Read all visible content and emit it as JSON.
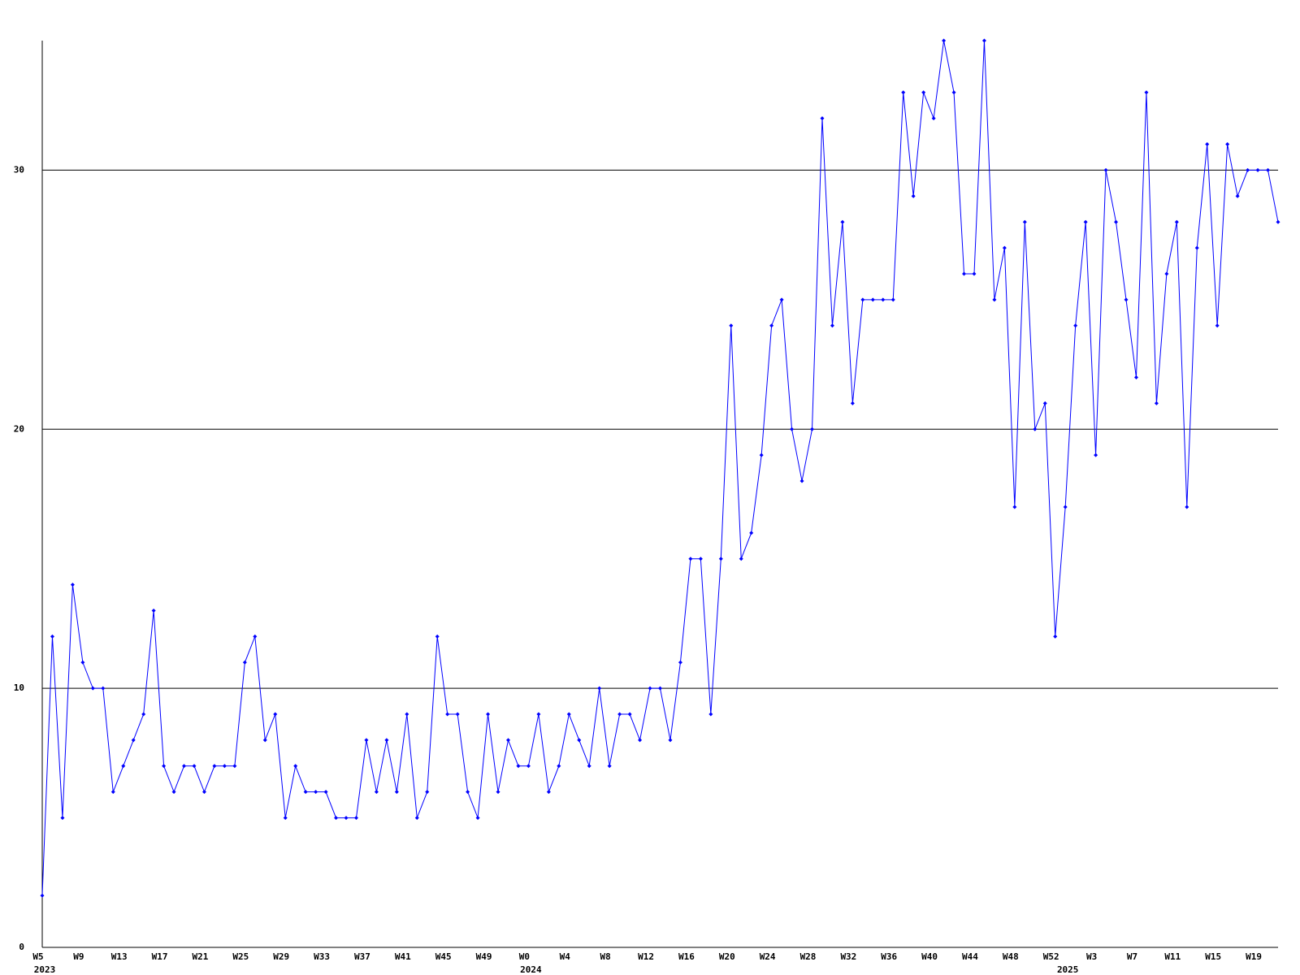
{
  "chart_data": {
    "type": "line",
    "color": "#0000ff",
    "grid": true,
    "categories": [
      "W5",
      null,
      null,
      null,
      "W9",
      null,
      null,
      null,
      "W13",
      null,
      null,
      null,
      "W17",
      null,
      null,
      null,
      "W21",
      null,
      null,
      null,
      "W25",
      null,
      null,
      null,
      "W29",
      null,
      null,
      null,
      "W33",
      null,
      null,
      null,
      "W37",
      null,
      null,
      null,
      "W41",
      null,
      null,
      null,
      "W45",
      null,
      null,
      null,
      "W49",
      null,
      null,
      null,
      "W0",
      null,
      null,
      null,
      "W4",
      null,
      null,
      null,
      "W8",
      null,
      null,
      null,
      "W12",
      null,
      null,
      null,
      "W16",
      null,
      null,
      null,
      "W20",
      null,
      null,
      null,
      "W24",
      null,
      null,
      null,
      "W28",
      null,
      null,
      null,
      "W32",
      null,
      null,
      null,
      "W36",
      null,
      null,
      null,
      "W40",
      null,
      null,
      null,
      "W44",
      null,
      null,
      null,
      "W48",
      null,
      null,
      null,
      "W52",
      null,
      null,
      null,
      "W3",
      null,
      null,
      null,
      "W7",
      null,
      null,
      null,
      "W11",
      null,
      null,
      null,
      "W15",
      null,
      null,
      null,
      "W19",
      null,
      null
    ],
    "x_years": [
      "2023",
      null,
      null,
      null,
      null,
      null,
      null,
      null,
      null,
      null,
      null,
      null,
      null,
      null,
      null,
      null,
      null,
      null,
      null,
      null,
      null,
      null,
      null,
      null,
      null,
      null,
      null,
      null,
      null,
      null,
      null,
      null,
      null,
      null,
      null,
      null,
      null,
      null,
      null,
      null,
      null,
      null,
      null,
      null,
      null,
      null,
      null,
      null,
      "2024",
      null,
      null,
      null,
      null,
      null,
      null,
      null,
      null,
      null,
      null,
      null,
      null,
      null,
      null,
      null,
      null,
      null,
      null,
      null,
      null,
      null,
      null,
      null,
      null,
      null,
      null,
      null,
      null,
      null,
      null,
      null,
      null,
      null,
      null,
      null,
      null,
      null,
      null,
      null,
      null,
      null,
      null,
      null,
      null,
      null,
      null,
      null,
      null,
      null,
      null,
      null,
      null,
      "2025",
      null,
      null,
      null,
      null,
      null,
      null,
      null,
      null,
      null,
      null,
      null,
      null,
      null,
      null,
      null,
      null,
      null,
      null,
      null,
      null,
      null
    ],
    "values": [
      2,
      12,
      5,
      14,
      11,
      10,
      10,
      6,
      7,
      8,
      9,
      13,
      7,
      6,
      7,
      7,
      6,
      7,
      7,
      7,
      11,
      12,
      8,
      9,
      5,
      7,
      6,
      6,
      6,
      5,
      5,
      5,
      8,
      6,
      8,
      6,
      9,
      5,
      6,
      12,
      9,
      9,
      6,
      5,
      9,
      6,
      8,
      7,
      7,
      9,
      6,
      7,
      9,
      8,
      7,
      10,
      7,
      9,
      9,
      8,
      10,
      10,
      8,
      11,
      15,
      15,
      9,
      15,
      24,
      15,
      16,
      19,
      24,
      25,
      20,
      18,
      20,
      32,
      24,
      28,
      21,
      25,
      25,
      25,
      25,
      33,
      29,
      33,
      32,
      35,
      33,
      26,
      26,
      35,
      25,
      27,
      17,
      28,
      20,
      21,
      12,
      17,
      24,
      28,
      19,
      30,
      28,
      25,
      22,
      33,
      21,
      26,
      28,
      17,
      27,
      31,
      24,
      31,
      29,
      30,
      30,
      30,
      28
    ],
    "ylim": [
      0,
      35
    ],
    "yticks": [
      0,
      10,
      20,
      30
    ]
  }
}
